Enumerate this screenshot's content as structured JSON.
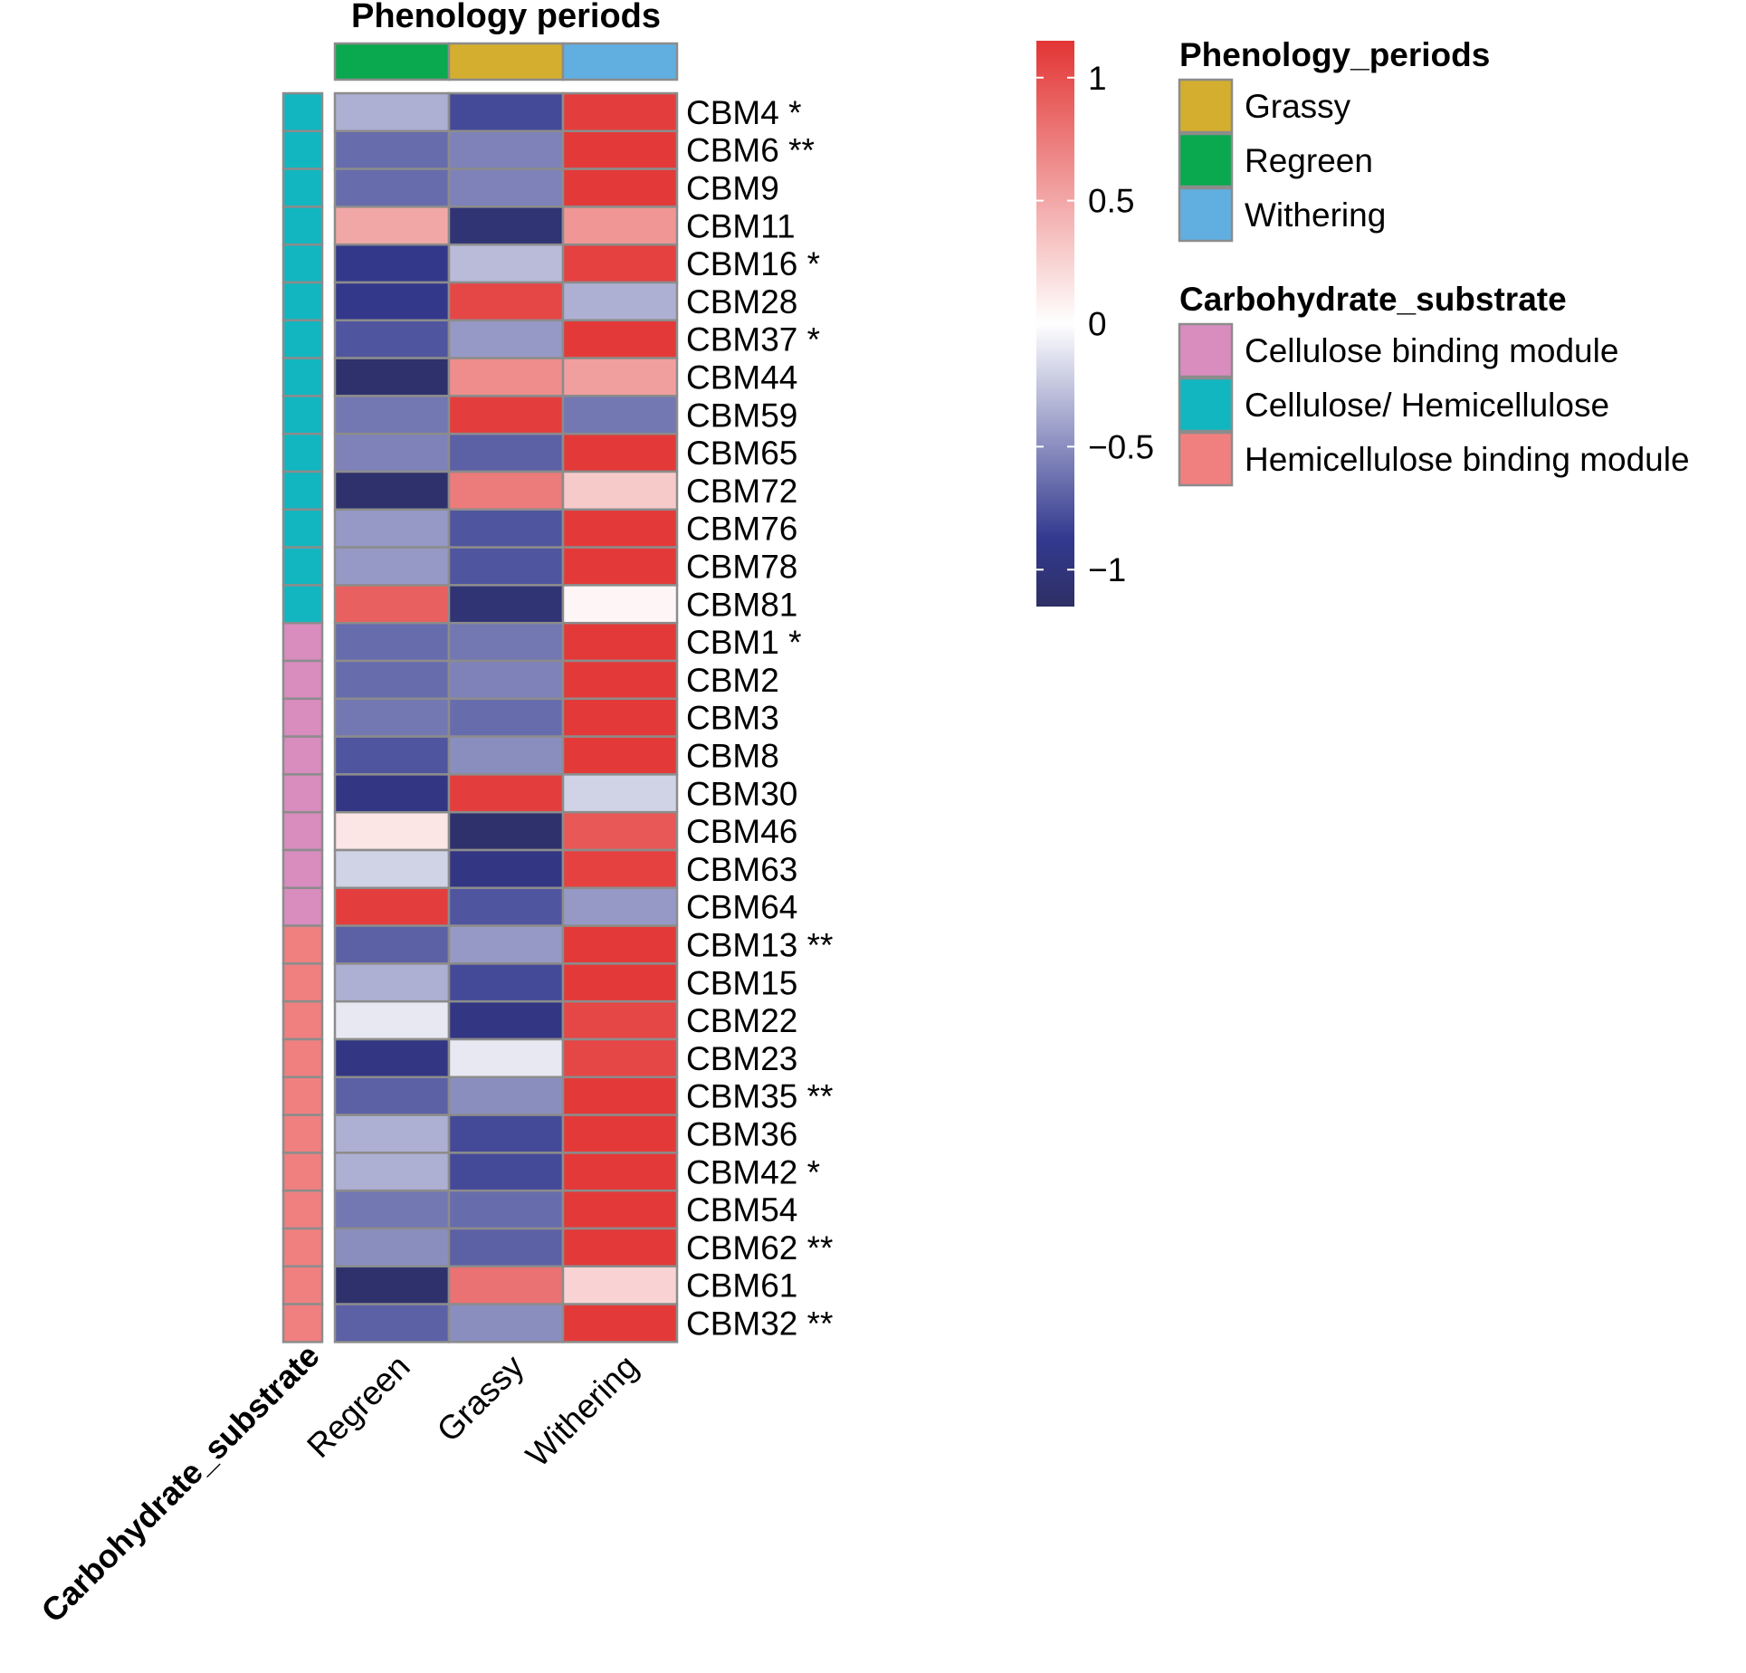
{
  "chart_data": {
    "type": "heatmap",
    "title": "Phenology periods",
    "columns": [
      "Regreen",
      "Grassy",
      "Withering"
    ],
    "column_annotation": {
      "name": "Phenology_periods",
      "values": [
        "Regreen",
        "Grassy",
        "Withering"
      ]
    },
    "row_annotation_label": "Carbohydrate_substrate",
    "rows": [
      {
        "label": "CBM4",
        "sig": "*",
        "group": "Cellulose/ Hemicellulose",
        "values": [
          -0.35,
          -0.8,
          1.1
        ]
      },
      {
        "label": "CBM6",
        "sig": "**",
        "group": "Cellulose/ Hemicellulose",
        "values": [
          -0.65,
          -0.55,
          1.12
        ]
      },
      {
        "label": "CBM9",
        "sig": "",
        "group": "Cellulose/ Hemicellulose",
        "values": [
          -0.65,
          -0.55,
          1.12
        ]
      },
      {
        "label": "CBM11",
        "sig": "",
        "group": "Cellulose/ Hemicellulose",
        "values": [
          0.5,
          -1.05,
          0.6
        ]
      },
      {
        "label": "CBM16",
        "sig": "*",
        "group": "Cellulose/ Hemicellulose",
        "values": [
          -0.9,
          -0.3,
          1.08
        ]
      },
      {
        "label": "CBM28",
        "sig": "",
        "group": "Cellulose/ Hemicellulose",
        "values": [
          -0.9,
          1.05,
          -0.35
        ]
      },
      {
        "label": "CBM37",
        "sig": "*",
        "group": "Cellulose/ Hemicellulose",
        "values": [
          -0.75,
          -0.45,
          1.12
        ]
      },
      {
        "label": "CBM44",
        "sig": "",
        "group": "Cellulose/ Hemicellulose",
        "values": [
          -1.1,
          0.65,
          0.55
        ]
      },
      {
        "label": "CBM59",
        "sig": "",
        "group": "Cellulose/ Hemicellulose",
        "values": [
          -0.6,
          1.1,
          -0.6
        ]
      },
      {
        "label": "CBM65",
        "sig": "",
        "group": "Cellulose/ Hemicellulose",
        "values": [
          -0.55,
          -0.7,
          1.12
        ]
      },
      {
        "label": "CBM72",
        "sig": "",
        "group": "Cellulose/ Hemicellulose",
        "values": [
          -1.1,
          0.75,
          0.3
        ]
      },
      {
        "label": "CBM76",
        "sig": "",
        "group": "Cellulose/ Hemicellulose",
        "values": [
          -0.45,
          -0.75,
          1.12
        ]
      },
      {
        "label": "CBM78",
        "sig": "",
        "group": "Cellulose/ Hemicellulose",
        "values": [
          -0.45,
          -0.75,
          1.12
        ]
      },
      {
        "label": "CBM81",
        "sig": "",
        "group": "Cellulose/ Hemicellulose",
        "values": [
          0.9,
          -1.05,
          0.05
        ]
      },
      {
        "label": "CBM1",
        "sig": "*",
        "group": "Cellulose binding module",
        "values": [
          -0.65,
          -0.6,
          1.12
        ]
      },
      {
        "label": "CBM2",
        "sig": "",
        "group": "Cellulose binding module",
        "values": [
          -0.65,
          -0.55,
          1.12
        ]
      },
      {
        "label": "CBM3",
        "sig": "",
        "group": "Cellulose binding module",
        "values": [
          -0.6,
          -0.65,
          1.12
        ]
      },
      {
        "label": "CBM8",
        "sig": "",
        "group": "Cellulose binding module",
        "values": [
          -0.75,
          -0.5,
          1.12
        ]
      },
      {
        "label": "CBM30",
        "sig": "",
        "group": "Cellulose binding module",
        "values": [
          -0.95,
          1.1,
          -0.2
        ]
      },
      {
        "label": "CBM46",
        "sig": "",
        "group": "Cellulose binding module",
        "values": [
          0.15,
          -1.1,
          0.95
        ]
      },
      {
        "label": "CBM63",
        "sig": "",
        "group": "Cellulose binding module",
        "values": [
          -0.2,
          -0.95,
          1.08
        ]
      },
      {
        "label": "CBM64",
        "sig": "",
        "group": "Cellulose binding module",
        "values": [
          1.1,
          -0.75,
          -0.45
        ]
      },
      {
        "label": "CBM13",
        "sig": "**",
        "group": "Hemicellulose binding module",
        "values": [
          -0.7,
          -0.45,
          1.12
        ]
      },
      {
        "label": "CBM15",
        "sig": "",
        "group": "Hemicellulose binding module",
        "values": [
          -0.35,
          -0.8,
          1.12
        ]
      },
      {
        "label": "CBM22",
        "sig": "",
        "group": "Hemicellulose binding module",
        "values": [
          -0.1,
          -0.95,
          1.05
        ]
      },
      {
        "label": "CBM23",
        "sig": "",
        "group": "Hemicellulose binding module",
        "values": [
          -0.95,
          -0.1,
          1.05
        ]
      },
      {
        "label": "CBM35",
        "sig": "**",
        "group": "Hemicellulose binding module",
        "values": [
          -0.7,
          -0.5,
          1.12
        ]
      },
      {
        "label": "CBM36",
        "sig": "",
        "group": "Hemicellulose binding module",
        "values": [
          -0.35,
          -0.8,
          1.12
        ]
      },
      {
        "label": "CBM42",
        "sig": "*",
        "group": "Hemicellulose binding module",
        "values": [
          -0.35,
          -0.8,
          1.12
        ]
      },
      {
        "label": "CBM54",
        "sig": "",
        "group": "Hemicellulose binding module",
        "values": [
          -0.6,
          -0.65,
          1.12
        ]
      },
      {
        "label": "CBM62",
        "sig": "**",
        "group": "Hemicellulose binding module",
        "values": [
          -0.5,
          -0.7,
          1.12
        ]
      },
      {
        "label": "CBM61",
        "sig": "",
        "group": "Hemicellulose binding module",
        "values": [
          -1.1,
          0.8,
          0.25
        ]
      },
      {
        "label": "CBM32",
        "sig": "**",
        "group": "Hemicellulose binding module",
        "values": [
          -0.7,
          -0.5,
          1.12
        ]
      }
    ],
    "colorbar": {
      "range": [
        -1.15,
        1.15
      ],
      "ticks": [
        1,
        0.5,
        0,
        -0.5,
        -1
      ],
      "tick_labels": [
        "1",
        "0.5",
        "0",
        "−0.5",
        "−1"
      ],
      "low_color": "#2e2f64",
      "mid_color": "#ffffff",
      "high_color": "#e23534"
    },
    "legends": [
      {
        "title": "Phenology_periods",
        "entries": [
          {
            "label": "Grassy",
            "color": "#d4ae2e"
          },
          {
            "label": "Regreen",
            "color": "#0aa84f"
          },
          {
            "label": "Withering",
            "color": "#61afe1"
          }
        ]
      },
      {
        "title": "Carbohydrate_substrate",
        "entries": [
          {
            "label": "Cellulose binding module",
            "color": "#d98cbe"
          },
          {
            "label": "Cellulose/ Hemicellulose",
            "color": "#12b6c0"
          },
          {
            "label": "Hemicellulose binding module",
            "color": "#f08080"
          }
        ]
      }
    ]
  }
}
